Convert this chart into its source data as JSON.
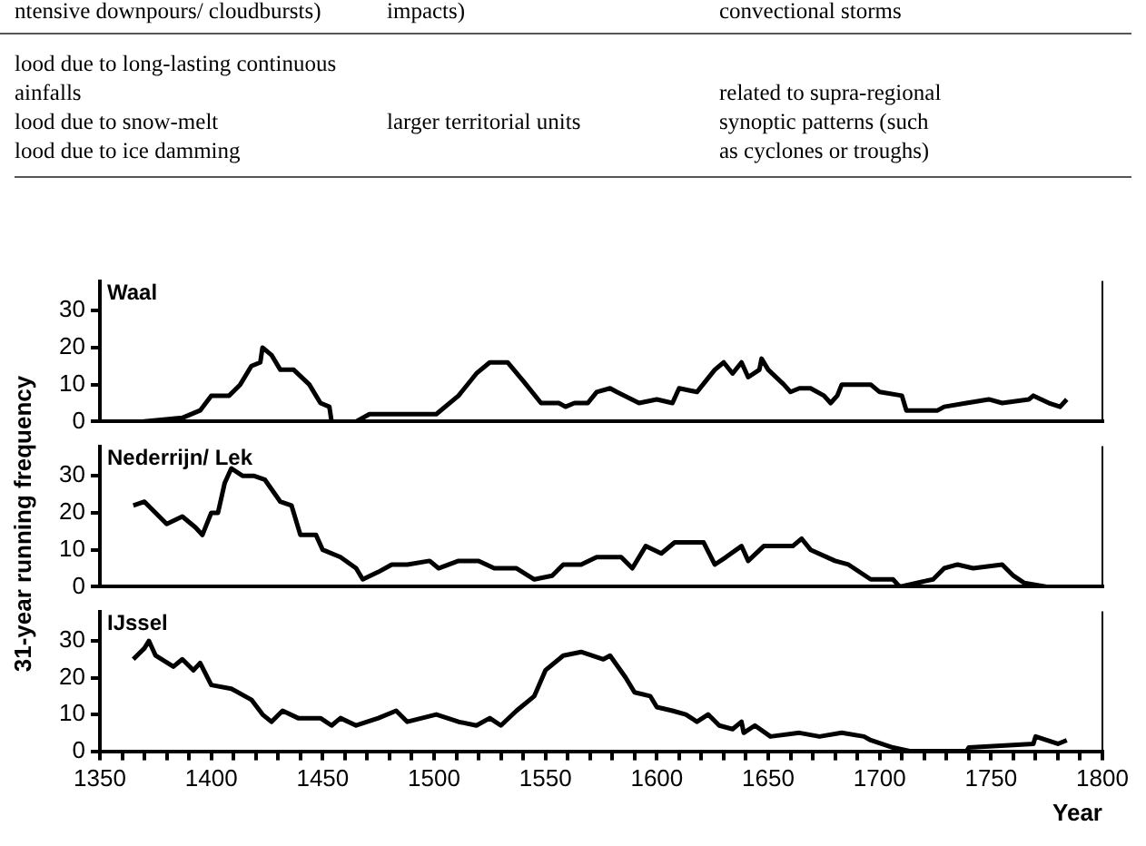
{
  "chart_data": [
    {
      "type": "line",
      "title": "Waal",
      "annotations": [
        "ntensive downpours/ cloudbursts)",
        "impacts)",
        "convectional storms",
        "lood due to long-lasting continuous\nainfalls\nlood due to snow-melt\nlood due to ice damming",
        "\n\nlarger territorial units",
        "\nrelated to supra-regional\nsynoptic patterns (such\nas cyclones or troughs)"
      ],
      "xlim": [
        1350,
        1800
      ],
      "ylim": [
        0,
        38
      ],
      "yticks": [
        0,
        10,
        20,
        30
      ],
      "tick_labels": "y",
      "grid": false,
      "legend": false,
      "marker": "none",
      "line_style": "solid",
      "series": [
        {
          "color": "#000000",
          "x": [
            1369,
            1387,
            1395,
            1400,
            1408,
            1413,
            1418,
            1422,
            1423,
            1427,
            1431,
            1437,
            1444,
            1449,
            1453,
            1454,
            1465,
            1471,
            1501,
            1511,
            1519,
            1525,
            1533,
            1540,
            1548,
            1556,
            1559,
            1563,
            1569,
            1573,
            1579,
            1582,
            1592,
            1600,
            1607,
            1610,
            1618,
            1626,
            1630,
            1634,
            1638,
            1641,
            1646,
            1647,
            1650,
            1657,
            1660,
            1664,
            1669,
            1675,
            1678,
            1681,
            1683,
            1696,
            1700,
            1710,
            1712,
            1726,
            1729,
            1739,
            1749,
            1755,
            1767,
            1769,
            1776,
            1781,
            1784
          ],
          "values": [
            0,
            1,
            3,
            7,
            7,
            10,
            15,
            16,
            20,
            18,
            14,
            14,
            10,
            5,
            4,
            0,
            0,
            2,
            2,
            7,
            13,
            16,
            16,
            11,
            5,
            5,
            4,
            5,
            5,
            8,
            9,
            8,
            5,
            6,
            5,
            9,
            8,
            14,
            16,
            13,
            16,
            12,
            14,
            17,
            14,
            10,
            8,
            9,
            9,
            7,
            5,
            7,
            10,
            10,
            8,
            7,
            3,
            3,
            4,
            5,
            6,
            5,
            6,
            7,
            5,
            4,
            6
          ]
        }
      ]
    },
    {
      "type": "line",
      "title": "Nederrijn/ Lek",
      "ylabel": "31-year running frequency",
      "xlim": [
        1350,
        1800
      ],
      "ylim": [
        0,
        38
      ],
      "yticks": [
        0,
        10,
        20,
        30
      ],
      "tick_labels": "y",
      "grid": false,
      "legend": false,
      "marker": "none",
      "line_style": "solid",
      "series": [
        {
          "color": "#000000",
          "x": [
            1365,
            1370,
            1375,
            1380,
            1387,
            1393,
            1396,
            1400,
            1403,
            1406,
            1409,
            1414,
            1419,
            1424,
            1431,
            1436,
            1440,
            1447,
            1450,
            1458,
            1465,
            1468,
            1475,
            1481,
            1488,
            1498,
            1502,
            1511,
            1520,
            1527,
            1537,
            1545,
            1553,
            1558,
            1566,
            1573,
            1584,
            1589,
            1595,
            1602,
            1608,
            1621,
            1626,
            1631,
            1638,
            1641,
            1648,
            1661,
            1665,
            1669,
            1680,
            1686,
            1696,
            1706,
            1709,
            1724,
            1729,
            1735,
            1742,
            1755,
            1760,
            1765,
            1775,
            1784
          ],
          "values": [
            22,
            23,
            20,
            17,
            19,
            16,
            14,
            20,
            20,
            28,
            32,
            30,
            30,
            29,
            23,
            22,
            14,
            14,
            10,
            8,
            5,
            2,
            4,
            6,
            6,
            7,
            5,
            7,
            7,
            5,
            5,
            2,
            3,
            6,
            6,
            8,
            8,
            5,
            11,
            9,
            12,
            12,
            6,
            8,
            11,
            7,
            11,
            11,
            13,
            10,
            7,
            6,
            2,
            2,
            0,
            2,
            5,
            6,
            5,
            6,
            3,
            1,
            0,
            0
          ]
        }
      ]
    },
    {
      "type": "line",
      "title": "IJssel",
      "xlabel": "Year",
      "xlim": [
        1350,
        1800
      ],
      "xticks": [
        1350,
        {
          "value": 1360,
          "label": null
        },
        {
          "value": 1370,
          "label": null
        },
        {
          "value": 1380,
          "label": null
        },
        {
          "value": 1390,
          "label": null
        },
        1400,
        {
          "value": 1410,
          "label": null
        },
        {
          "value": 1420,
          "label": null
        },
        {
          "value": 1430,
          "label": null
        },
        {
          "value": 1440,
          "label": null
        },
        1450,
        {
          "value": 1460,
          "label": null
        },
        {
          "value": 1470,
          "label": null
        },
        {
          "value": 1480,
          "label": null
        },
        {
          "value": 1490,
          "label": null
        },
        1500,
        {
          "value": 1510,
          "label": null
        },
        {
          "value": 1520,
          "label": null
        },
        {
          "value": 1530,
          "label": null
        },
        {
          "value": 1540,
          "label": null
        },
        1550,
        {
          "value": 1560,
          "label": null
        },
        {
          "value": 1570,
          "label": null
        },
        {
          "value": 1580,
          "label": null
        },
        {
          "value": 1590,
          "label": null
        },
        1600,
        {
          "value": 1610,
          "label": null
        },
        {
          "value": 1620,
          "label": null
        },
        {
          "value": 1630,
          "label": null
        },
        {
          "value": 1640,
          "label": null
        },
        1650,
        {
          "value": 1660,
          "label": null
        },
        {
          "value": 1670,
          "label": null
        },
        {
          "value": 1680,
          "label": null
        },
        {
          "value": 1690,
          "label": null
        },
        1700,
        {
          "value": 1710,
          "label": null
        },
        {
          "value": 1720,
          "label": null
        },
        {
          "value": 1730,
          "label": null
        },
        {
          "value": 1740,
          "label": null
        },
        1750,
        {
          "value": 1760,
          "label": null
        },
        {
          "value": 1770,
          "label": null
        },
        {
          "value": 1780,
          "label": null
        },
        {
          "value": 1790,
          "label": null
        },
        1800
      ],
      "ylim": [
        0,
        38
      ],
      "yticks": [
        0,
        10,
        20,
        30
      ],
      "grid": false,
      "legend": false,
      "marker": "none",
      "line_style": "solid",
      "series": [
        {
          "color": "#000000",
          "x": [
            1365,
            1370,
            1372,
            1375,
            1383,
            1387,
            1392,
            1395,
            1400,
            1409,
            1418,
            1423,
            1427,
            1432,
            1439,
            1449,
            1454,
            1458,
            1465,
            1475,
            1483,
            1488,
            1501,
            1511,
            1519,
            1525,
            1530,
            1537,
            1545,
            1550,
            1558,
            1566,
            1576,
            1579,
            1586,
            1590,
            1597,
            1600,
            1607,
            1613,
            1618,
            1623,
            1628,
            1634,
            1638,
            1639,
            1644,
            1651,
            1664,
            1673,
            1683,
            1693,
            1696,
            1706,
            1714,
            1739,
            1740,
            1769,
            1770,
            1775,
            1780,
            1784
          ],
          "values": [
            25,
            28,
            30,
            26,
            23,
            25,
            22,
            24,
            18,
            17,
            14,
            10,
            8,
            11,
            9,
            9,
            7,
            9,
            7,
            9,
            11,
            8,
            10,
            8,
            7,
            9,
            7,
            11,
            15,
            22,
            26,
            27,
            25,
            26,
            20,
            16,
            15,
            12,
            11,
            10,
            8,
            10,
            7,
            6,
            8,
            5,
            7,
            4,
            5,
            4,
            5,
            4,
            3,
            1,
            0,
            0,
            1,
            2,
            4,
            3,
            2,
            3
          ]
        }
      ]
    }
  ]
}
